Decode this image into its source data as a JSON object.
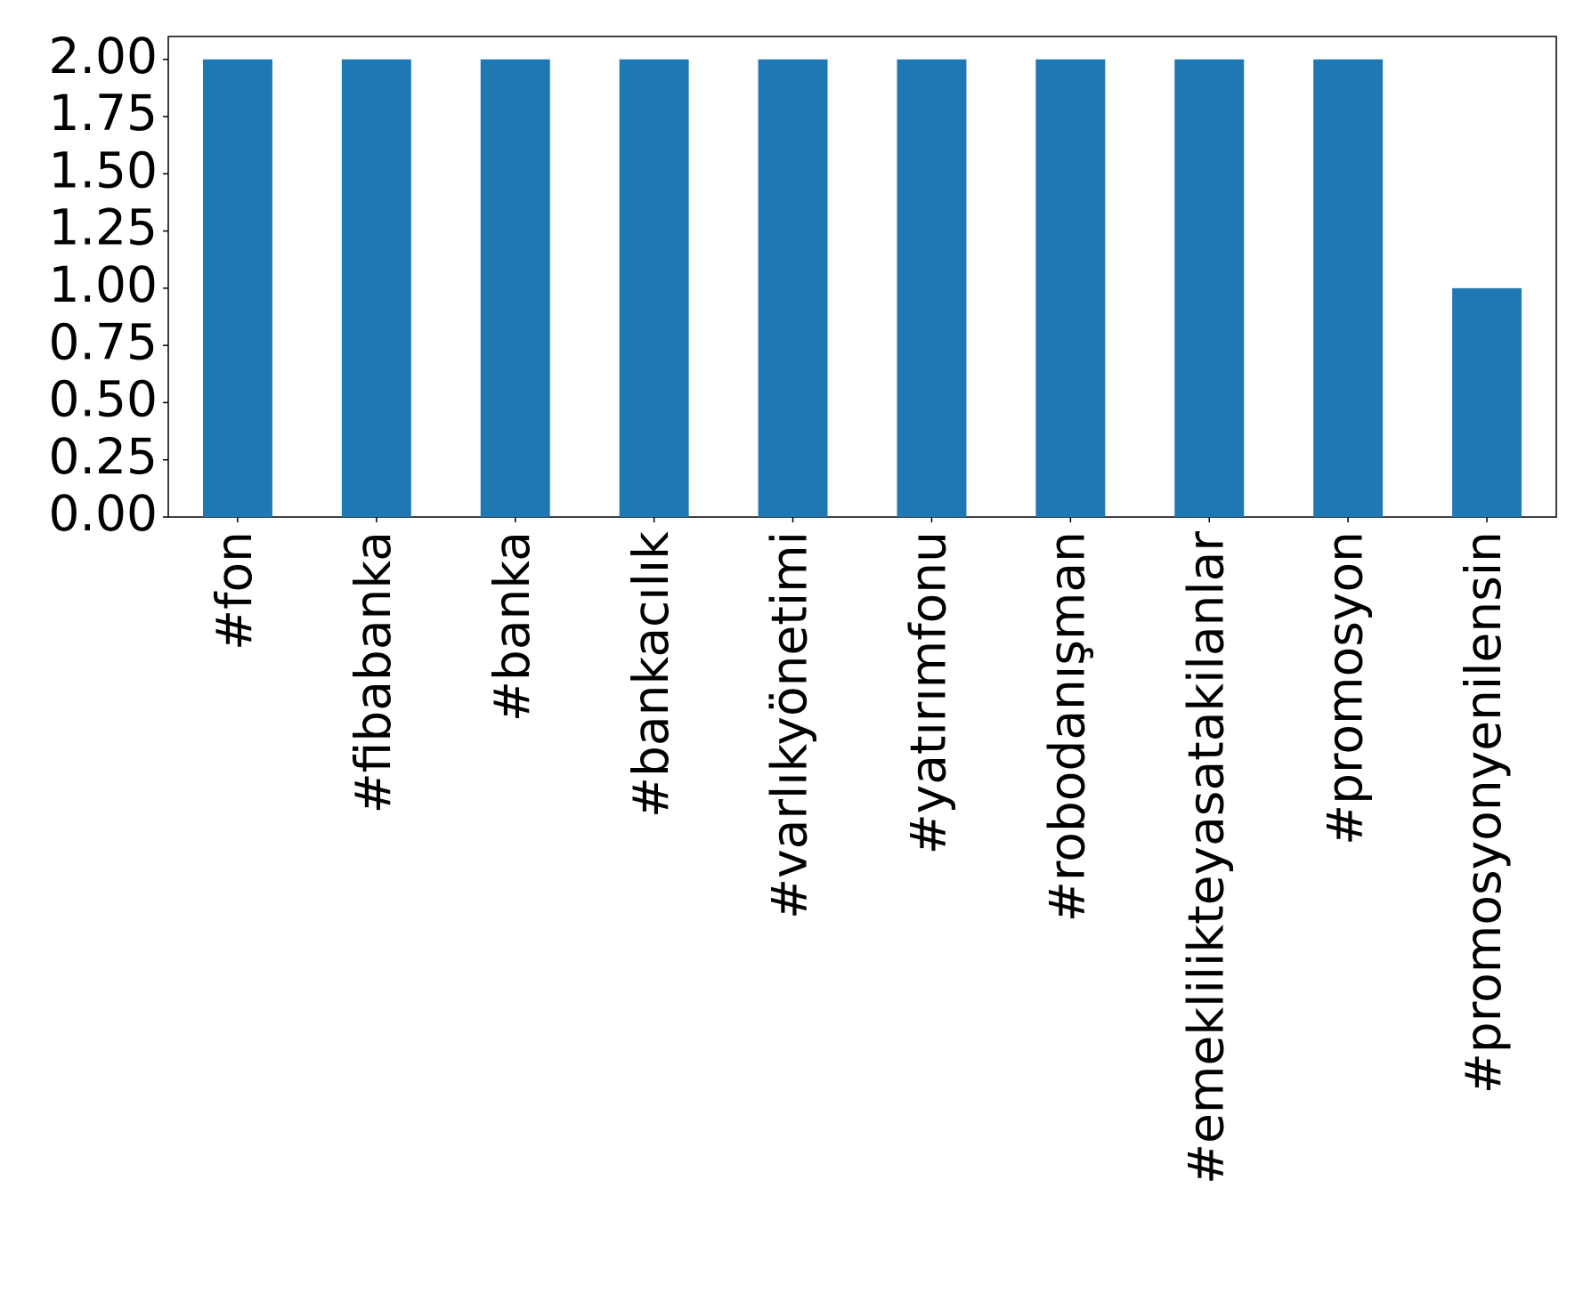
{
  "chart_data": {
    "type": "bar",
    "categories": [
      "#fon",
      "#fibabanka",
      "#banka",
      "#bankacılık",
      "#varlıkyönetimi",
      "#yatırımfonu",
      "#robodanışman",
      "#emeklilikteyasatakilanlar",
      "#promosyon",
      "#promosyonyenilensin"
    ],
    "values": [
      2,
      2,
      2,
      2,
      2,
      2,
      2,
      2,
      2,
      1
    ],
    "color": "#1f77b4",
    "ylim": [
      0,
      2.1
    ],
    "yticks": [
      {
        "value": 0,
        "label": "0.00"
      },
      {
        "value": 0.25,
        "label": "0.25"
      },
      {
        "value": 0.5,
        "label": "0.50"
      },
      {
        "value": 0.75,
        "label": "0.75"
      },
      {
        "value": 1,
        "label": "1.00"
      },
      {
        "value": 1.25,
        "label": "1.25"
      },
      {
        "value": 1.5,
        "label": "1.50"
      },
      {
        "value": 1.75,
        "label": "1.75"
      },
      {
        "value": 2,
        "label": "2.00"
      }
    ],
    "grid": false
  }
}
